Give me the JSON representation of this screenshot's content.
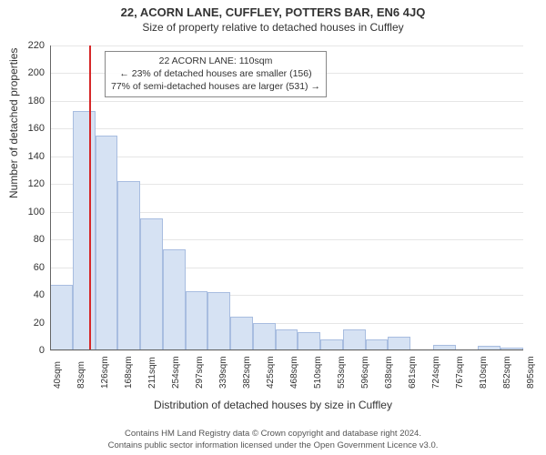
{
  "title_main": "22, ACORN LANE, CUFFLEY, POTTERS BAR, EN6 4JQ",
  "title_sub": "Size of property relative to detached houses in Cuffley",
  "ylabel": "Number of detached properties",
  "xlabel": "Distribution of detached houses by size in Cuffley",
  "footer_line1": "Contains HM Land Registry data © Crown copyright and database right 2024.",
  "footer_line2": "Contains public sector information licensed under the Open Government Licence v3.0.",
  "chart": {
    "type": "histogram",
    "background_color": "#ffffff",
    "grid_color": "#e6e6e6",
    "axis_color": "#666666",
    "bar_fill": "#d6e2f3",
    "bar_stroke": "#a8bde0",
    "marker_color": "#d62728",
    "marker_x_value": 110,
    "ylim": [
      0,
      220
    ],
    "ytick_step": 20,
    "x_start": 40,
    "x_bin_width": 42.65,
    "x_end": 895,
    "xticks": [
      40,
      83,
      126,
      168,
      211,
      254,
      297,
      339,
      382,
      425,
      468,
      510,
      553,
      596,
      638,
      681,
      724,
      767,
      810,
      852,
      895
    ],
    "xtick_suffix": "sqm",
    "bars": [
      47,
      173,
      155,
      122,
      95,
      73,
      43,
      42,
      24,
      20,
      15,
      13,
      8,
      15,
      8,
      10,
      0,
      4,
      0,
      3,
      2
    ],
    "label_fontsize": 12,
    "tick_fontsize": 11,
    "xtick_fontsize": 10
  },
  "annotation": {
    "line1": "22 ACORN LANE: 110sqm",
    "line2": "← 23% of detached houses are smaller (156)",
    "line3": "77% of semi-detached houses are larger (531) →"
  }
}
